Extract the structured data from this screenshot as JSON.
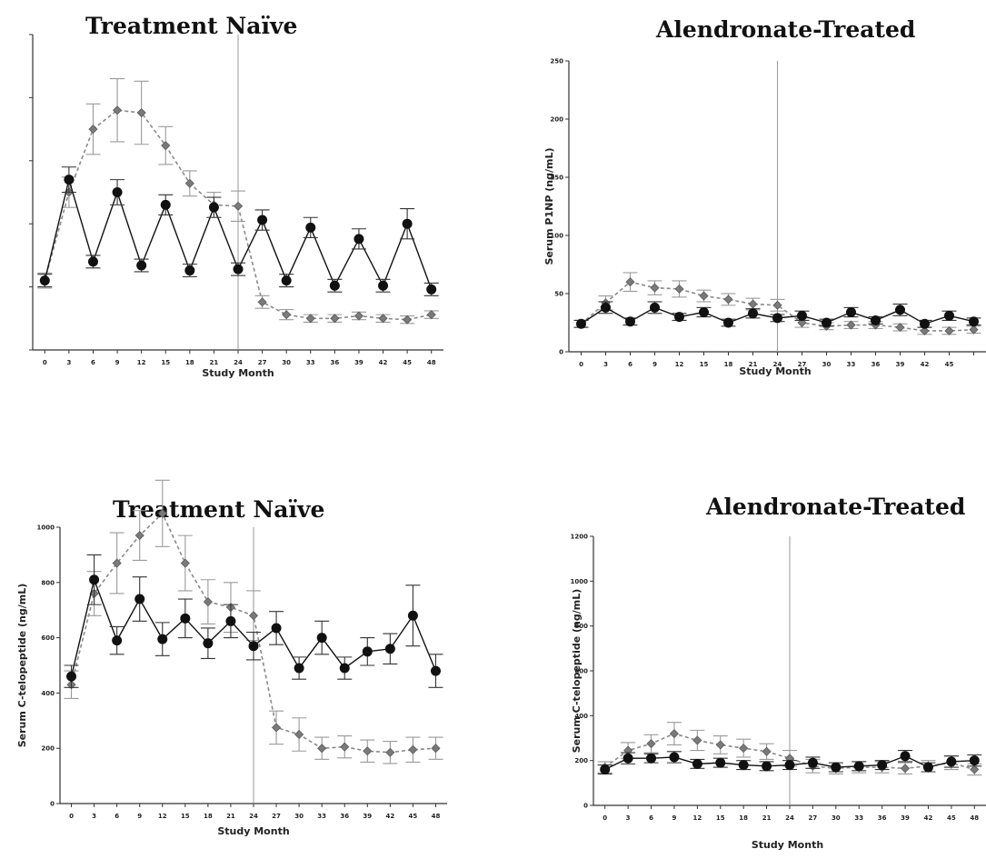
{
  "chart_data": [
    {
      "type": "line",
      "title": "Treatment Naïve",
      "xlabel": "Study Month",
      "ylabel": "",
      "show_y_ticks": false,
      "x": [
        0,
        3,
        6,
        9,
        12,
        15,
        18,
        21,
        24,
        27,
        30,
        33,
        36,
        39,
        42,
        45,
        48
      ],
      "x_tick_labels": [
        "0",
        "3",
        "6",
        "9",
        "12",
        "15",
        "18",
        "21",
        "24",
        "27",
        "30",
        "33",
        "36",
        "39",
        "42",
        "45",
        "48"
      ],
      "xlim": [
        -1.5,
        49.5
      ],
      "ylim": [
        0,
        250
      ],
      "yticks": [
        0,
        50,
        100,
        150,
        200,
        250
      ],
      "vline": 24,
      "series": [
        {
          "style": "solid-circle",
          "values": [
            55,
            135,
            70,
            125,
            67,
            115,
            63,
            113,
            64,
            103,
            55,
            97,
            51,
            88,
            51,
            100,
            48
          ],
          "err": [
            5,
            10,
            5,
            10,
            5,
            8,
            5,
            8,
            5,
            8,
            5,
            8,
            5,
            8,
            5,
            12,
            5
          ]
        },
        {
          "style": "dashed-diamond",
          "values": [
            55,
            125,
            175,
            190,
            188,
            162,
            132,
            115,
            114,
            38,
            28,
            25,
            25,
            27,
            25,
            24,
            28
          ],
          "err": [
            6,
            12,
            20,
            25,
            25,
            15,
            10,
            10,
            12,
            5,
            4,
            3,
            3,
            3,
            3,
            3,
            3
          ]
        }
      ]
    },
    {
      "type": "line",
      "title": "Alendronate-Treated",
      "xlabel": "Study Month",
      "ylabel": "Serum P1NP (ng/mL)",
      "show_y_ticks": true,
      "x": [
        0,
        3,
        6,
        9,
        12,
        15,
        18,
        21,
        24,
        27,
        30,
        33,
        36,
        39,
        42,
        45,
        48
      ],
      "x_tick_labels": [
        "0",
        "3",
        "6",
        "9",
        "12",
        "15",
        "18",
        "21",
        "24",
        "27",
        "30",
        "33",
        "36",
        "39",
        "42",
        "45",
        ""
      ],
      "xlim": [
        -1.5,
        49.5
      ],
      "ylim": [
        0,
        250
      ],
      "yticks": [
        0,
        50,
        100,
        150,
        200,
        250
      ],
      "vline": 24,
      "series": [
        {
          "style": "solid-circle",
          "values": [
            24,
            38,
            26,
            38,
            30,
            34,
            25,
            33,
            29,
            31,
            25,
            34,
            27,
            36,
            24,
            31,
            26
          ],
          "err": [
            3,
            5,
            3,
            5,
            3,
            4,
            3,
            4,
            3,
            4,
            3,
            4,
            3,
            5,
            3,
            4,
            3
          ]
        },
        {
          "style": "dashed-diamond",
          "values": [
            24,
            42,
            60,
            55,
            54,
            48,
            45,
            41,
            40,
            25,
            22,
            23,
            23,
            21,
            18,
            18,
            19
          ],
          "err": [
            3,
            6,
            8,
            6,
            7,
            5,
            5,
            5,
            5,
            4,
            3,
            3,
            3,
            3,
            3,
            3,
            3
          ]
        }
      ]
    },
    {
      "type": "line",
      "title": "Treatment Naïve",
      "xlabel": "Study Month",
      "ylabel": "Serum C-telopeptide (ng/mL)",
      "show_y_ticks": true,
      "x": [
        0,
        3,
        6,
        9,
        12,
        15,
        18,
        21,
        24,
        27,
        30,
        33,
        36,
        39,
        42,
        45,
        48
      ],
      "x_tick_labels": [
        "0",
        "3",
        "6",
        "9",
        "12",
        "15",
        "18",
        "21",
        "24",
        "27",
        "30",
        "33",
        "36",
        "39",
        "42",
        "45",
        "48"
      ],
      "xlim": [
        -1.5,
        49.5
      ],
      "ylim": [
        0,
        1000
      ],
      "yticks": [
        0,
        200,
        400,
        600,
        800,
        1000
      ],
      "vline": 24,
      "series": [
        {
          "style": "solid-circle",
          "values": [
            460,
            810,
            590,
            740,
            595,
            670,
            580,
            660,
            570,
            635,
            490,
            600,
            490,
            550,
            560,
            680,
            480
          ],
          "err": [
            40,
            90,
            50,
            80,
            60,
            70,
            55,
            60,
            50,
            60,
            40,
            60,
            40,
            50,
            55,
            110,
            60
          ]
        },
        {
          "style": "dashed-diamond",
          "values": [
            430,
            760,
            870,
            970,
            1050,
            870,
            730,
            710,
            680,
            275,
            250,
            200,
            205,
            190,
            185,
            195,
            200
          ],
          "err": [
            50,
            80,
            110,
            90,
            120,
            100,
            80,
            90,
            90,
            60,
            60,
            40,
            40,
            40,
            40,
            45,
            40
          ]
        }
      ]
    },
    {
      "type": "line",
      "title": "Alendronate-Treated",
      "xlabel": "Study Month",
      "ylabel": "Serum C-telopeptide (ng/mL)",
      "show_y_ticks": true,
      "x": [
        0,
        3,
        6,
        9,
        12,
        15,
        18,
        21,
        24,
        27,
        30,
        33,
        36,
        39,
        42,
        45,
        48
      ],
      "x_tick_labels": [
        "0",
        "3",
        "6",
        "9",
        "12",
        "15",
        "18",
        "21",
        "24",
        "27",
        "30",
        "33",
        "36",
        "39",
        "42",
        "45",
        "48"
      ],
      "xlim": [
        -1.5,
        49.5
      ],
      "ylim": [
        0,
        1200
      ],
      "yticks": [
        0,
        200,
        400,
        600,
        800,
        1000,
        1200
      ],
      "vline": 24,
      "series": [
        {
          "style": "solid-circle",
          "values": [
            160,
            210,
            210,
            215,
            185,
            190,
            180,
            175,
            180,
            190,
            170,
            175,
            180,
            220,
            170,
            195,
            200
          ],
          "err": [
            20,
            25,
            20,
            25,
            20,
            20,
            20,
            20,
            20,
            25,
            20,
            20,
            20,
            25,
            20,
            25,
            25
          ]
        },
        {
          "style": "dashed-diamond",
          "values": [
            170,
            245,
            275,
            320,
            290,
            270,
            255,
            240,
            210,
            175,
            165,
            170,
            170,
            165,
            175,
            190,
            160
          ],
          "err": [
            25,
            35,
            40,
            50,
            45,
            40,
            40,
            35,
            35,
            30,
            25,
            25,
            25,
            25,
            25,
            30,
            25
          ]
        }
      ]
    }
  ]
}
